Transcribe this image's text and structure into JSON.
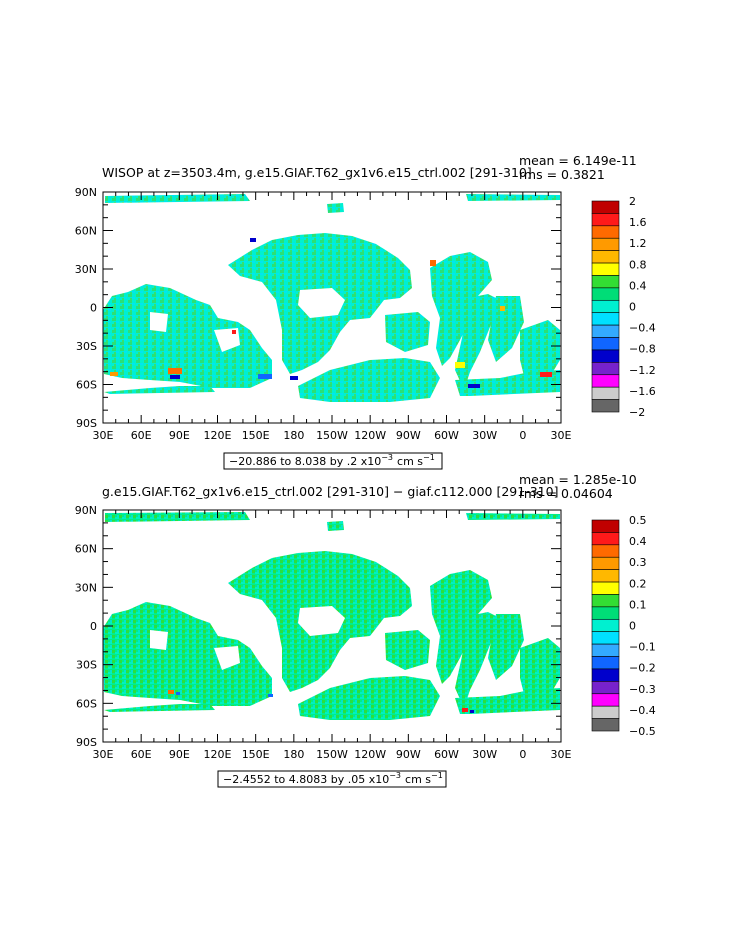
{
  "chart_data": [
    {
      "type": "heatmap",
      "title": "WISOP at z=3503.4m, g.e15.GIAF.T62_gx1v6.e15_ctrl.002 [291-310]",
      "stats": [
        "mean = 6.149e-11",
        "rms = 0.3821"
      ],
      "range_text": "−20.886 to 8.038 by .2 x10",
      "range_exp": "−3",
      "range_unit": "cm s",
      "range_unit_exp": "−1",
      "xticks": [
        "30E",
        "60E",
        "90E",
        "120E",
        "150E",
        "180",
        "150W",
        "120W",
        "90W",
        "60W",
        "30W",
        "0",
        "30E"
      ],
      "yticks": [
        "90N",
        "60N",
        "30N",
        "0",
        "30S",
        "60S",
        "90S"
      ],
      "legend_labels": [
        "2",
        "1.6",
        "1.2",
        "0.8",
        "0.4",
        "0",
        "−0.4",
        "−0.8",
        "−1.2",
        "−1.6",
        "−2"
      ],
      "legend_colors": [
        "#c00000",
        "#ff1a1a",
        "#ff6a00",
        "#ff9a00",
        "#ffb800",
        "#ffff00",
        "#33dd33",
        "#00dd77",
        "#00f0d0",
        "#00e0ff",
        "#33aaff",
        "#1066ff",
        "#0000cc",
        "#7722cc",
        "#ff00ff",
        "#cccccc",
        "#666666"
      ]
    },
    {
      "type": "heatmap",
      "title": "g.e15.GIAF.T62_gx1v6.e15_ctrl.002 [291-310] − giaf.c112.000 [291-310]",
      "stats": [
        "mean = 1.285e-10",
        "rms = 0.04604"
      ],
      "range_text": "−2.4552 to 4.8083 by .05 x10",
      "range_exp": "−3",
      "range_unit": "cm s",
      "range_unit_exp": "−1",
      "xticks": [
        "30E",
        "60E",
        "90E",
        "120E",
        "150E",
        "180",
        "150W",
        "120W",
        "90W",
        "60W",
        "30W",
        "0",
        "30E"
      ],
      "yticks": [
        "90N",
        "60N",
        "30N",
        "0",
        "30S",
        "60S",
        "90S"
      ],
      "legend_labels": [
        "0.5",
        "0.4",
        "0.3",
        "0.2",
        "0.1",
        "0",
        "−0.1",
        "−0.2",
        "−0.3",
        "−0.4",
        "−0.5"
      ],
      "legend_colors": [
        "#c00000",
        "#ff1a1a",
        "#ff6a00",
        "#ff9a00",
        "#ffb800",
        "#ffff00",
        "#33dd33",
        "#00dd77",
        "#00f0d0",
        "#00e0ff",
        "#33aaff",
        "#1066ff",
        "#0000cc",
        "#7722cc",
        "#ff00ff",
        "#cccccc",
        "#666666"
      ]
    }
  ],
  "colors": {
    "ocean_base": "#00f0d0",
    "ocean_alt": "#33dd66",
    "ocean_cyan": "#00e0ff",
    "land": "#ffffff",
    "frame": "#000000"
  }
}
